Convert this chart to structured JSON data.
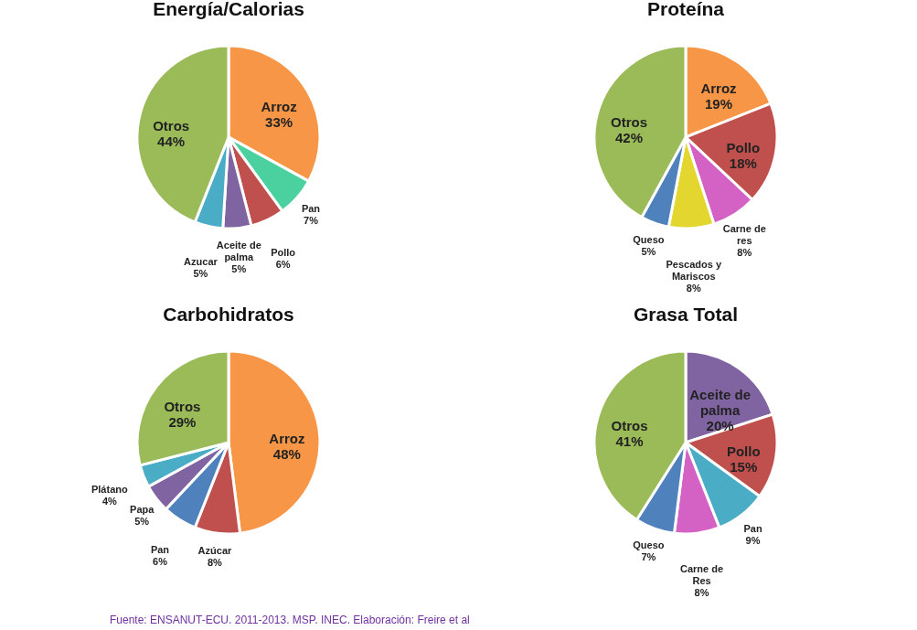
{
  "chart_data": [
    {
      "type": "pie",
      "title": "Energía/Calorias",
      "categories": [
        "Arroz",
        "Pan",
        "Pollo",
        "Aceite de palma",
        "Azucar",
        "Otros"
      ],
      "values": [
        33,
        7,
        6,
        5,
        5,
        44
      ],
      "value_labels": [
        "33%",
        "7%",
        "6%",
        "5%",
        "5%",
        "44%"
      ],
      "colors": [
        "#f79646",
        "#4bd1a0",
        "#c0504d",
        "#8064a2",
        "#4bacc6",
        "#9bbb59"
      ]
    },
    {
      "type": "pie",
      "title": "Proteína",
      "categories": [
        "Arroz",
        "Pollo",
        "Carne de res",
        "Pescados y Mariscos",
        "Queso",
        "Otros"
      ],
      "values": [
        19,
        18,
        8,
        8,
        5,
        42
      ],
      "value_labels": [
        "19%",
        "18%",
        "8%",
        "8%",
        "5%",
        "42%"
      ],
      "colors": [
        "#f79646",
        "#c0504d",
        "#d462c4",
        "#e3d62e",
        "#4f81bd",
        "#9bbb59"
      ]
    },
    {
      "type": "pie",
      "title": "Carbohidratos",
      "categories": [
        "Arroz",
        "Azúcar",
        "Pan",
        "Papa",
        "Plátano",
        "Otros"
      ],
      "values": [
        48,
        8,
        6,
        5,
        4,
        29
      ],
      "value_labels": [
        "48%",
        "8%",
        "6%",
        "5%",
        "4%",
        "29%"
      ],
      "colors": [
        "#f79646",
        "#c0504d",
        "#4f81bd",
        "#8064a2",
        "#4bacc6",
        "#9bbb59"
      ],
      "annotations": [
        "Fuente: ENSANUT-ECU. 2011-2013. MSP. INEC. Elaboración: Freire et al"
      ]
    },
    {
      "type": "pie",
      "title": "Grasa Total",
      "categories": [
        "Aceite de palma",
        "Pollo",
        "Pan",
        "Carne de Res",
        "Queso",
        "Otros"
      ],
      "values": [
        20,
        15,
        9,
        8,
        7,
        41
      ],
      "value_labels": [
        "20%",
        "15%",
        "9%",
        "8%",
        "7%",
        "41%"
      ],
      "colors": [
        "#8064a2",
        "#c0504d",
        "#4bacc6",
        "#d462c4",
        "#4f81bd",
        "#9bbb59"
      ]
    }
  ]
}
